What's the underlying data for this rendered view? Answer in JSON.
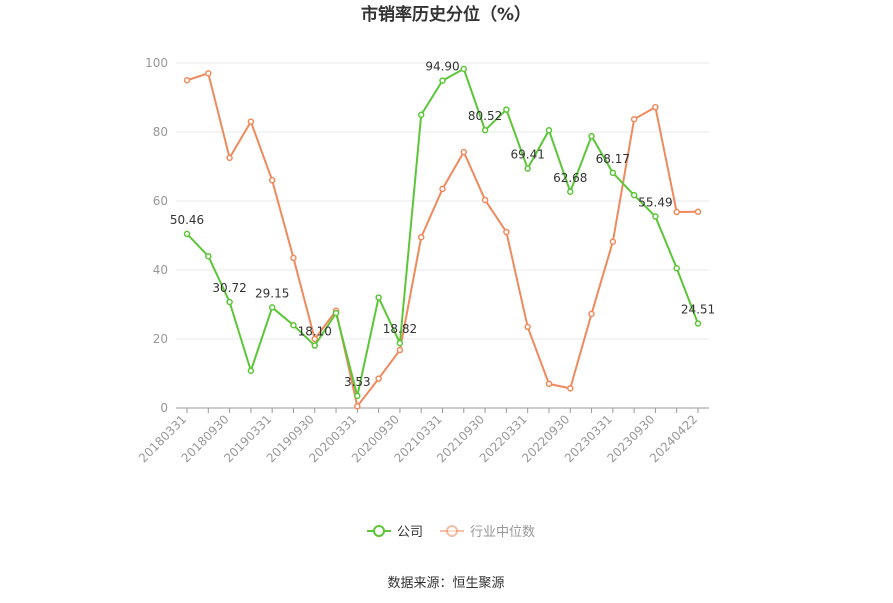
{
  "chart_data": {
    "type": "line",
    "title": "市销率历史分位（%）",
    "source": "数据来源：恒生聚源",
    "ylim": [
      0,
      100
    ],
    "yticks": [
      "0",
      "20",
      "40",
      "60",
      "80",
      "100"
    ],
    "x": [
      "20180331",
      "20180630",
      "20180930",
      "20181231",
      "20190331",
      "20190630",
      "20190930",
      "20191231",
      "20200331",
      "20200630",
      "20200930",
      "20201231",
      "20210331",
      "20210630",
      "20210930",
      "20211231",
      "20220331",
      "20220630",
      "20220930",
      "20221231",
      "20230331",
      "20230630",
      "20230930",
      "20231231",
      "20240422"
    ],
    "xtick_labels": [
      "20180331",
      "20180930",
      "20190331",
      "20190930",
      "20200331",
      "20200930",
      "20210331",
      "20210930",
      "20220331",
      "20220930",
      "20230331",
      "20230930",
      "20240422"
    ],
    "grid": true,
    "legend_position": "bottom",
    "series": [
      {
        "name": "公司",
        "color": "#5cc639",
        "values": [
          50.46,
          44.0,
          30.72,
          10.8,
          29.15,
          24.0,
          18.1,
          27.5,
          3.53,
          32.0,
          18.82,
          85.0,
          94.9,
          98.3,
          80.52,
          86.5,
          69.41,
          80.5,
          62.68,
          78.8,
          68.17,
          61.7,
          55.49,
          40.5,
          24.51
        ],
        "labels": [
          "50.46",
          "",
          "30.72",
          "",
          "29.15",
          "",
          "18.10",
          "",
          "3.53",
          "",
          "18.82",
          "",
          "94.90",
          "",
          "80.52",
          "",
          "69.41",
          "",
          "62.68",
          "",
          "68.17",
          "",
          "55.49",
          "",
          "24.51"
        ]
      },
      {
        "name": "行业中位数",
        "color": "#f08a5d",
        "values": [
          95.0,
          97.0,
          72.5,
          83.0,
          66.0,
          43.5,
          20.0,
          28.2,
          0.5,
          8.5,
          16.8,
          49.5,
          63.5,
          74.2,
          60.3,
          51.0,
          23.5,
          7.0,
          5.7,
          27.3,
          48.2,
          83.7,
          87.2,
          56.8,
          56.9
        ]
      }
    ]
  }
}
